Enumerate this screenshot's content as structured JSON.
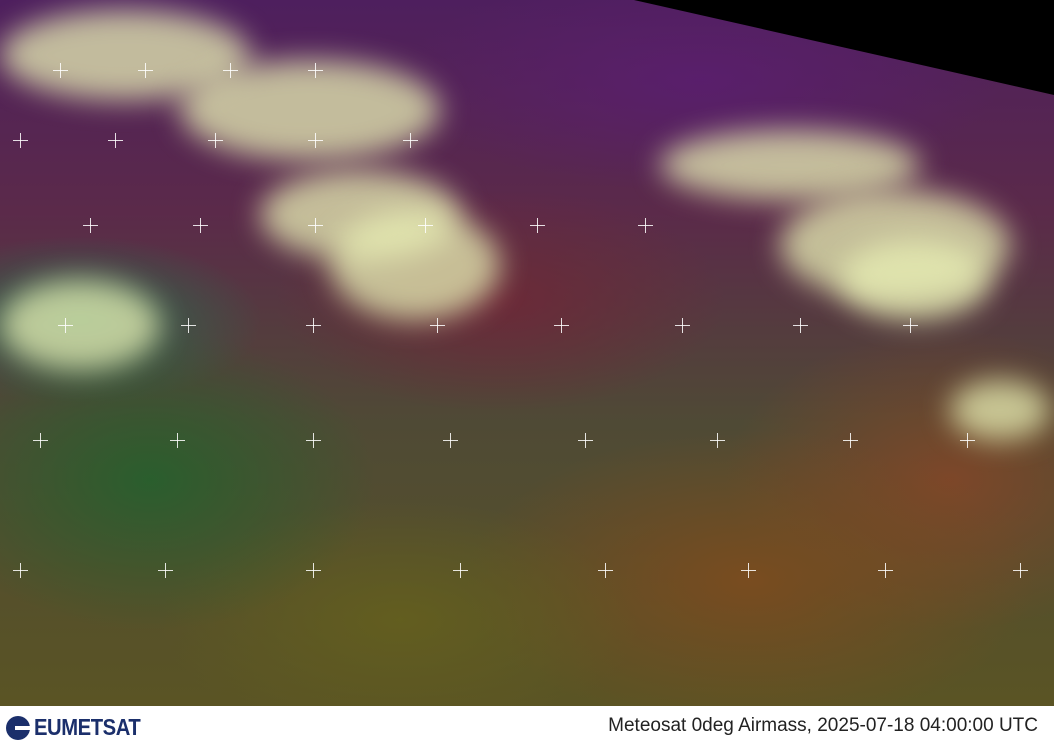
{
  "image": {
    "type": "satellite-map",
    "colors": {
      "clouds": "#e8efb4",
      "purple_high": "#4e1f5e",
      "dry_red": "#6e2a3c",
      "moist_green": "#2a5f3a",
      "olive": "#6a5a20",
      "space": "#000000",
      "borders": "#ffffff"
    }
  },
  "footer": {
    "logo": "EUMETSAT",
    "caption": "Meteosat 0deg Airmass, 2025-07-18 04:00:00 UTC"
  }
}
